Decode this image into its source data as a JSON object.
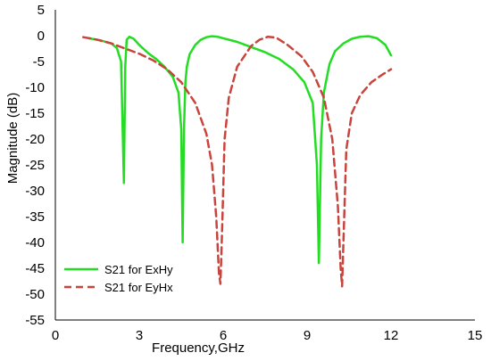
{
  "chart_data": {
    "type": "line",
    "title": "",
    "xlabel": "Frequency,GHz",
    "ylabel": "Magnitude (dB)",
    "xlim": [
      0,
      15
    ],
    "ylim": [
      -55,
      5
    ],
    "xticks": [
      0,
      3,
      6,
      9,
      12,
      15
    ],
    "yticks": [
      5,
      0,
      -5,
      -10,
      -15,
      -20,
      -25,
      -30,
      -35,
      -40,
      -45,
      -50,
      -55
    ],
    "grid": false,
    "legend_position": "bottom-left",
    "series": [
      {
        "name": "S21 for ExHy",
        "color": "#22dd22",
        "style": "solid",
        "x": [
          1.2,
          1.6,
          2.0,
          2.2,
          2.35,
          2.45,
          2.5,
          2.55,
          2.65,
          2.8,
          3.0,
          3.3,
          3.6,
          3.9,
          4.2,
          4.4,
          4.5,
          4.55,
          4.6,
          4.65,
          4.7,
          4.8,
          5.0,
          5.2,
          5.4,
          5.6,
          5.8,
          6.0,
          6.5,
          7.0,
          7.5,
          8.0,
          8.5,
          8.9,
          9.2,
          9.35,
          9.42,
          9.5,
          9.6,
          9.8,
          10.0,
          10.3,
          10.6,
          10.9,
          11.2,
          11.5,
          11.8,
          12.0
        ],
        "y": [
          -0.5,
          -0.9,
          -1.5,
          -2.4,
          -5.0,
          -28.5,
          -6.0,
          -0.8,
          -0.2,
          -0.6,
          -1.8,
          -3.3,
          -4.5,
          -6.0,
          -8.0,
          -11.0,
          -18.0,
          -40.0,
          -18.0,
          -9.0,
          -6.0,
          -3.6,
          -1.8,
          -0.8,
          -0.3,
          -0.1,
          -0.2,
          -0.5,
          -1.2,
          -2.2,
          -3.2,
          -4.5,
          -6.5,
          -9.0,
          -13.0,
          -25.0,
          -44.0,
          -20.0,
          -11.0,
          -5.5,
          -3.0,
          -1.5,
          -0.6,
          -0.2,
          -0.1,
          -0.5,
          -1.8,
          -3.8
        ]
      },
      {
        "name": "S21 for EyHx",
        "color": "#c8443c",
        "style": "dashed",
        "x": [
          1.0,
          1.5,
          2.0,
          2.5,
          3.0,
          3.5,
          4.0,
          4.5,
          5.0,
          5.4,
          5.6,
          5.75,
          5.85,
          5.9,
          5.95,
          6.05,
          6.2,
          6.5,
          7.0,
          7.3,
          7.6,
          7.9,
          8.3,
          8.8,
          9.2,
          9.6,
          9.9,
          10.1,
          10.2,
          10.25,
          10.3,
          10.4,
          10.6,
          10.9,
          11.3,
          11.7,
          12.0
        ],
        "y": [
          -0.3,
          -0.8,
          -1.5,
          -2.5,
          -3.5,
          -4.8,
          -6.5,
          -9.0,
          -13.0,
          -19.0,
          -25.0,
          -35.0,
          -46.0,
          -48.0,
          -40.0,
          -20.0,
          -12.0,
          -6.0,
          -2.0,
          -0.8,
          -0.2,
          -0.4,
          -1.8,
          -4.0,
          -7.0,
          -12.0,
          -20.0,
          -33.0,
          -45.0,
          -48.5,
          -40.0,
          -22.0,
          -15.0,
          -11.5,
          -9.0,
          -7.5,
          -6.5
        ]
      }
    ]
  }
}
